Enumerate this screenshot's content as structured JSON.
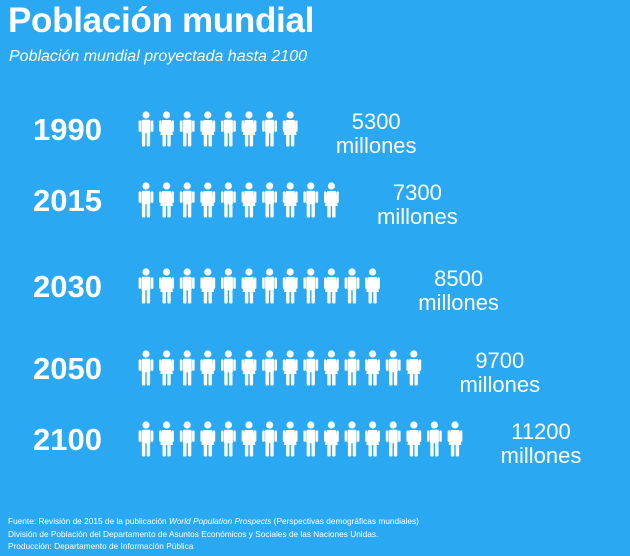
{
  "header": {
    "title": "Población mundial",
    "subtitle": "Población mundial proyectada hasta 2100"
  },
  "colors": {
    "background": "#2aa9f2",
    "foreground": "#ffffff"
  },
  "icons": {
    "person": "person-icon"
  },
  "chart_data": {
    "type": "pictogram",
    "title": "Población mundial",
    "subtitle": "Población mundial proyectada hasta 2100",
    "unit": "millones",
    "categories": [
      "1990",
      "2015",
      "2030",
      "2050",
      "2100"
    ],
    "values": [
      5300,
      7300,
      8500,
      9700,
      11200
    ],
    "value_labels": [
      "5300",
      "7300",
      "8500",
      "9700",
      "11200"
    ],
    "icon_counts": [
      8,
      10,
      12,
      14,
      16
    ]
  },
  "footer": {
    "source_prefix": "Fuente: Revisión de 2015 de la publicación ",
    "source_title": "World Population Prospects",
    "source_suffix": " (Perspectivas demográficas mundiales)",
    "division": "División de Población del Departamento de Asuntos Económicos y Sociales de las Naciones Unidas.",
    "production": "Producción: Departamento de Información Pública"
  }
}
